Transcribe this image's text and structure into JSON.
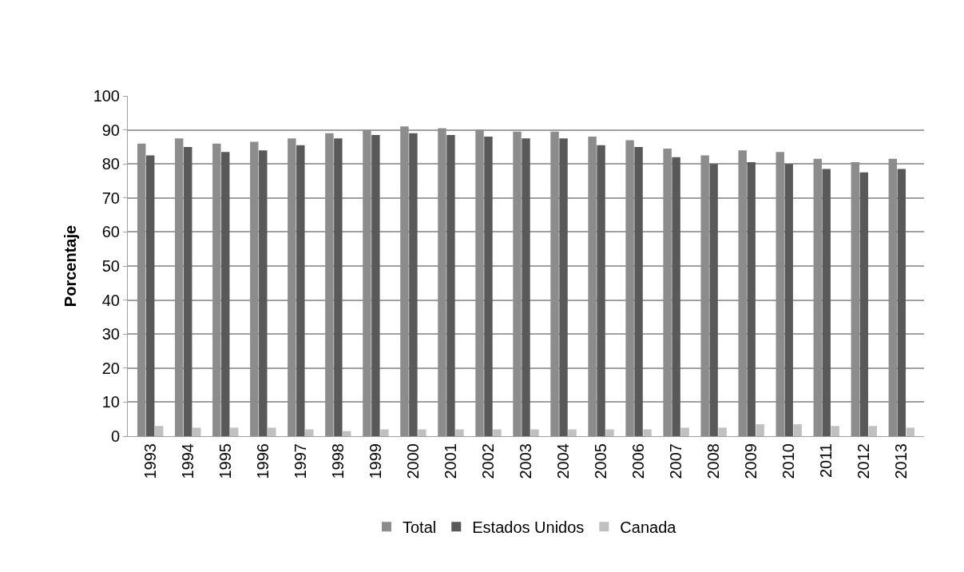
{
  "chart_data": {
    "type": "bar",
    "ylabel": "Porcentaje",
    "categories": [
      "1993",
      "1994",
      "1995",
      "1996",
      "1997",
      "1998",
      "1999",
      "2000",
      "2001",
      "2002",
      "2003",
      "2004",
      "2005",
      "2006",
      "2007",
      "2008",
      "2009",
      "2010",
      "2011",
      "2012",
      "2013"
    ],
    "series": [
      {
        "name": "Total",
        "color": "#8c8c8c",
        "values": [
          86,
          87.5,
          86,
          86.5,
          87.5,
          89,
          90,
          91,
          90.5,
          90,
          89.5,
          89.5,
          88,
          87,
          84.5,
          82.5,
          84,
          83.5,
          81.5,
          80.5,
          81.5
        ]
      },
      {
        "name": "Estados Unidos",
        "color": "#595959",
        "values": [
          82.5,
          85,
          83.5,
          84,
          85.5,
          87.5,
          88.5,
          89,
          88.5,
          88,
          87.5,
          87.5,
          85.5,
          85,
          82,
          80,
          80.5,
          80,
          78.5,
          77.5,
          78.5
        ]
      },
      {
        "name": "Canada",
        "color": "#c0c0c0",
        "values": [
          3,
          2.5,
          2.5,
          2.5,
          2,
          1.5,
          2,
          2,
          2,
          2,
          2,
          2,
          2,
          2,
          2.5,
          2.5,
          3.5,
          3.5,
          3,
          3,
          2.5
        ]
      }
    ],
    "ylim": [
      0,
      100
    ],
    "yticks": [
      0,
      10,
      20,
      30,
      40,
      50,
      60,
      70,
      80,
      90,
      100
    ],
    "grid": "y",
    "legend": "bottom"
  }
}
